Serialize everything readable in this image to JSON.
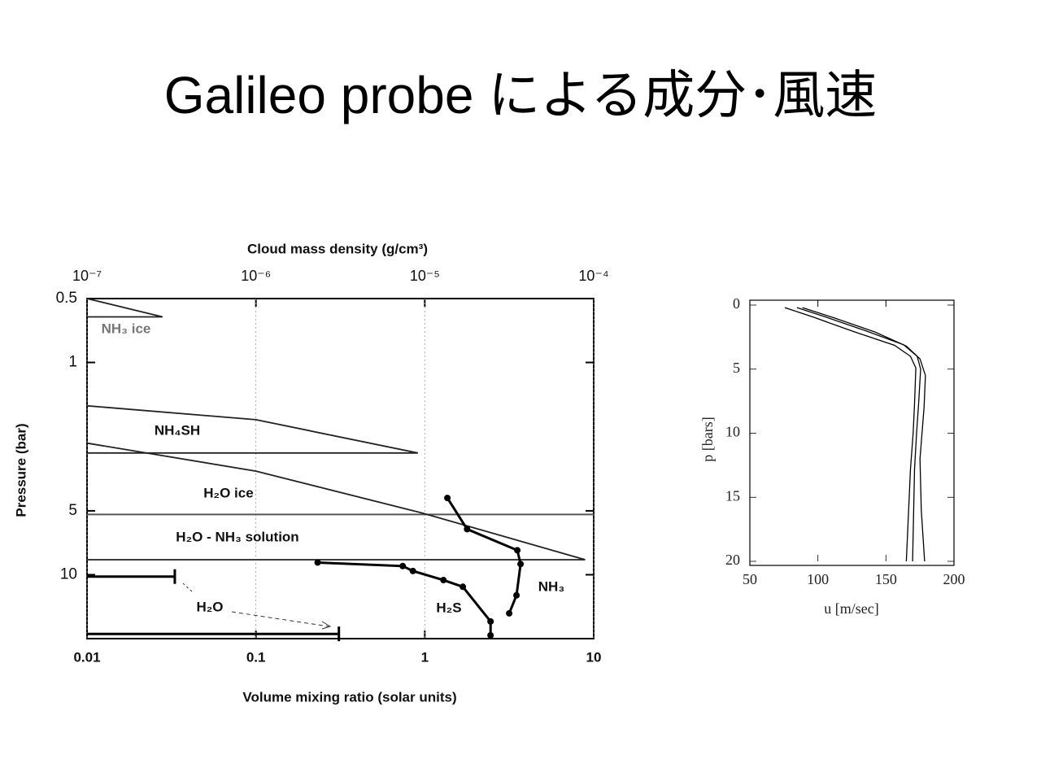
{
  "slide_title": "Galileo probe による成分･風速",
  "chart_data": [
    {
      "type": "line",
      "x_label": "Volume mixing ratio  (solar units)",
      "x2_label": "Cloud mass density  (g/cm³)",
      "y_label": "Pressure  (bar)",
      "xscale": "log",
      "x2scale": "log",
      "yscale": "log",
      "xlim": [
        0.01,
        10
      ],
      "xticks": [
        0.01,
        0.1,
        1,
        10
      ],
      "x2lim": [
        1e-07,
        0.0001
      ],
      "x2ticks": [
        {
          "value": 1e-07,
          "label": "10⁻⁷"
        },
        {
          "value": 1e-06,
          "label": "10⁻⁶"
        },
        {
          "value": 1e-05,
          "label": "10⁻⁵"
        },
        {
          "value": 0.0001,
          "label": "10⁻⁴"
        }
      ],
      "x2grid": true,
      "ylim": [
        20,
        0.5
      ],
      "yticks": [
        0.5,
        1,
        5,
        10
      ],
      "series": [
        {
          "name": "NH₃",
          "color": "#000000",
          "markers": true,
          "x": [
            1.36,
            1.78,
            3.53,
            3.69,
            3.49,
            3.16
          ],
          "values": [
            4.35,
            6.1,
            7.67,
            8.9,
            12.5,
            15.2
          ]
        },
        {
          "name": "H₂S",
          "color": "#000000",
          "markers": true,
          "x": [
            0.232,
            0.74,
            0.85,
            1.29,
            1.68,
            2.45,
            2.45
          ],
          "values": [
            8.76,
            9.1,
            9.6,
            10.6,
            11.4,
            16.6,
            19.3
          ]
        },
        {
          "name": "H₂O",
          "color": "#000000",
          "markers": false,
          "x": [
            0.01,
            0.0331,
            null,
            0.01,
            0.31
          ],
          "values": [
            10.2,
            10.2,
            null,
            19,
            19
          ]
        }
      ],
      "clouds": [
        {
          "axis": "x2",
          "color": "#222222",
          "x": [
            1e-07,
            2.8e-07,
            1e-07
          ],
          "values": [
            0.5,
            0.61,
            0.61
          ]
        },
        {
          "axis": "x2",
          "color": "#222222",
          "x": [
            1e-07,
            1e-06,
            9.1e-06,
            1e-07
          ],
          "values": [
            1.6,
            1.86,
            2.67,
            2.67
          ]
        },
        {
          "axis": "x2",
          "color": "#222222",
          "x": [
            1e-07,
            1e-06,
            9.5e-06,
            8.9e-05,
            1e-07
          ],
          "values": [
            2.4,
            3.25,
            5.1,
            8.5,
            8.5
          ]
        }
      ],
      "layer_boundaries": [
        5.2
      ],
      "cloud_labels": [
        "NH₃ ice",
        "NH₄SH",
        "H₂O ice",
        "H₂O - NH₃ solution"
      ]
    },
    {
      "type": "line",
      "x_label": "u [m/sec]",
      "y_label": "p [bars]",
      "xlim": [
        50,
        200
      ],
      "xticks": [
        50,
        100,
        150,
        200
      ],
      "ylim": [
        20,
        0
      ],
      "yticks": [
        0,
        5,
        10,
        15,
        20
      ],
      "series": [
        {
          "color": "#000000",
          "x": [
            75.7,
            96.6,
            126.4,
            156.4,
            168,
            172,
            171,
            170,
            168,
            165
          ],
          "values": [
            0.2,
            0.94,
            2.07,
            3.14,
            4,
            4.9,
            7.7,
            10,
            12.8,
            20
          ]
        },
        {
          "color": "#000000",
          "x": [
            84.6,
            105,
            135,
            163,
            173,
            175.5,
            174,
            172.5,
            171,
            169.6
          ],
          "values": [
            0.2,
            0.9,
            2,
            3.1,
            4,
            5,
            7.7,
            10,
            12.8,
            20
          ]
        },
        {
          "color": "#000000",
          "x": [
            88.6,
            112,
            142,
            165,
            175,
            179,
            178,
            175,
            176,
            178.4
          ],
          "values": [
            0.2,
            1,
            2.1,
            3.2,
            4.2,
            5.5,
            8,
            12,
            16,
            20
          ]
        }
      ]
    }
  ]
}
